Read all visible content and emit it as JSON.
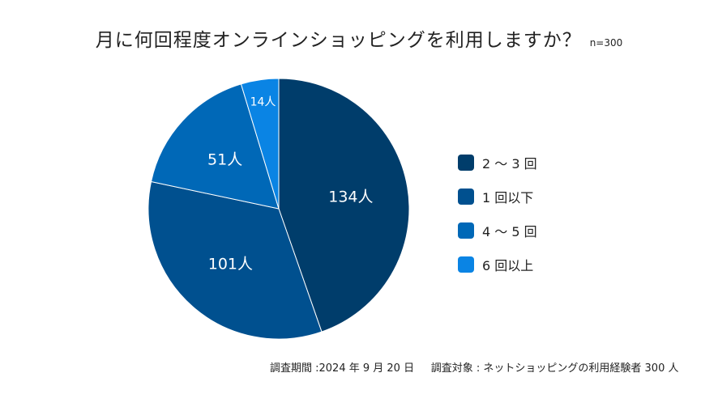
{
  "title": "月に何回程度オンラインショッピングを利用しますか？",
  "sample_size": "n=300",
  "chart_data": {
    "type": "pie",
    "title": "月に何回程度オンラインショッピングを利用しますか？",
    "unit": "人",
    "slices": [
      {
        "name": "2 ～ 3 回",
        "value": 134,
        "label": "134人",
        "color": "#003d6b"
      },
      {
        "name": "1 回以下",
        "value": 101,
        "label": "101人",
        "color": "#00508f"
      },
      {
        "name": "4 ～ 5 回",
        "value": 51,
        "label": "51人",
        "color": "#0068b7"
      },
      {
        "name": "6 回以上",
        "value": 14,
        "label": "14人",
        "color": "#0a84e4"
      }
    ],
    "legend": "right"
  },
  "footer": {
    "period": "調査期間 :2024 年 9 月 20 日",
    "target": "調査対象 : ネットショッピングの利用経験者 300 人"
  }
}
